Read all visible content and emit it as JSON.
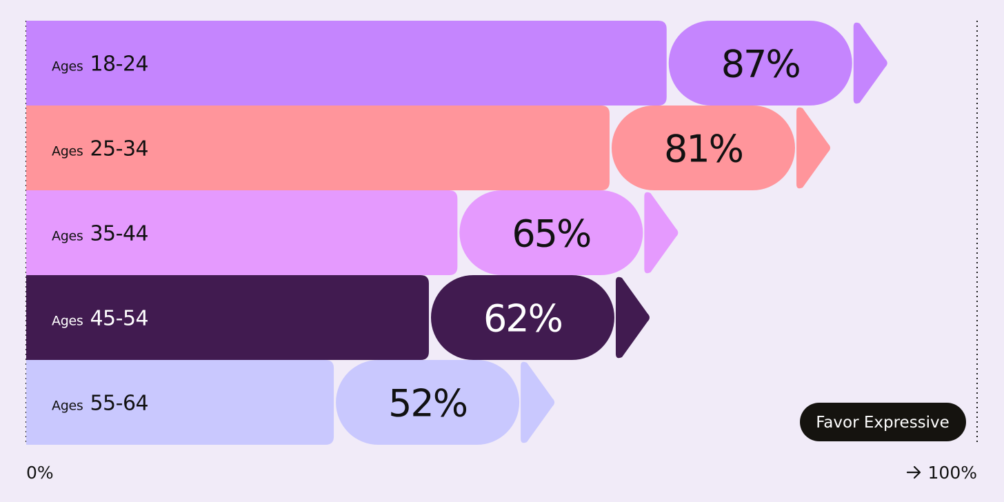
{
  "chart_data": {
    "type": "bar",
    "orientation": "horizontal",
    "categories": [
      "18-24",
      "25-34",
      "35-44",
      "45-54",
      "55-64"
    ],
    "category_prefix": "Ages",
    "values": [
      87,
      81,
      65,
      62,
      52
    ],
    "value_labels": [
      "87%",
      "81%",
      "65%",
      "62%",
      "52%"
    ],
    "bar_colors": [
      "#c585fe",
      "#ff959b",
      "#e59afe",
      "#411b50",
      "#c9c8fe"
    ],
    "label_colors": [
      "#111111",
      "#111111",
      "#111111",
      "#ffffff",
      "#111111"
    ],
    "xlim": [
      0,
      100
    ],
    "x_tick_labels": {
      "start": "0%",
      "end": "100%"
    },
    "end_arrow_icon": "arrow-right-icon",
    "badge": "Favor Expressive",
    "badge_color": "#15130f",
    "grid": false
  }
}
